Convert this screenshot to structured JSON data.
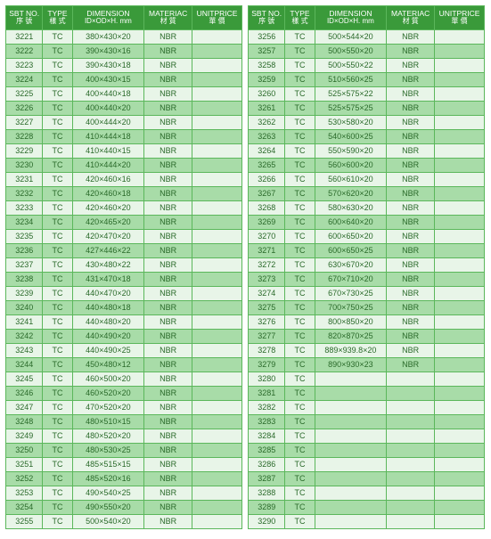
{
  "header": {
    "bg": "#3a9a3a",
    "fg": "#ffffff",
    "border": "#5bb75b",
    "row_odd_bg": "#e8f5e8",
    "row_even_bg": "#a8dca8",
    "cell_fg": "#2a6a2a",
    "columns": [
      {
        "line1": "SBT NO.",
        "line2": "序 號"
      },
      {
        "line1": "TYPE",
        "line2": "樣 式"
      },
      {
        "line1": "DIMENSION",
        "line2": "ID×OD×H. mm"
      },
      {
        "line1": "MATERIAC",
        "line2": "材 質"
      },
      {
        "line1": "UNITPRICE",
        "line2": "單 價"
      }
    ]
  },
  "left": [
    [
      "3221",
      "TC",
      "380×430×20",
      "NBR",
      ""
    ],
    [
      "3222",
      "TC",
      "390×430×16",
      "NBR",
      ""
    ],
    [
      "3223",
      "TC",
      "390×430×18",
      "NBR",
      ""
    ],
    [
      "3224",
      "TC",
      "400×430×15",
      "NBR",
      ""
    ],
    [
      "3225",
      "TC",
      "400×440×18",
      "NBR",
      ""
    ],
    [
      "3226",
      "TC",
      "400×440×20",
      "NBR",
      ""
    ],
    [
      "3227",
      "TC",
      "400×444×20",
      "NBR",
      ""
    ],
    [
      "3228",
      "TC",
      "410×444×18",
      "NBR",
      ""
    ],
    [
      "3229",
      "TC",
      "410×440×15",
      "NBR",
      ""
    ],
    [
      "3230",
      "TC",
      "410×444×20",
      "NBR",
      ""
    ],
    [
      "3231",
      "TC",
      "420×460×16",
      "NBR",
      ""
    ],
    [
      "3232",
      "TC",
      "420×460×18",
      "NBR",
      ""
    ],
    [
      "3233",
      "TC",
      "420×460×20",
      "NBR",
      ""
    ],
    [
      "3234",
      "TC",
      "420×465×20",
      "NBR",
      ""
    ],
    [
      "3235",
      "TC",
      "420×470×20",
      "NBR",
      ""
    ],
    [
      "3236",
      "TC",
      "427×446×22",
      "NBR",
      ""
    ],
    [
      "3237",
      "TC",
      "430×480×22",
      "NBR",
      ""
    ],
    [
      "3238",
      "TC",
      "431×470×18",
      "NBR",
      ""
    ],
    [
      "3239",
      "TC",
      "440×470×20",
      "NBR",
      ""
    ],
    [
      "3240",
      "TC",
      "440×480×18",
      "NBR",
      ""
    ],
    [
      "3241",
      "TC",
      "440×480×20",
      "NBR",
      ""
    ],
    [
      "3242",
      "TC",
      "440×490×20",
      "NBR",
      ""
    ],
    [
      "3243",
      "TC",
      "440×490×25",
      "NBR",
      ""
    ],
    [
      "3244",
      "TC",
      "450×480×12",
      "NBR",
      ""
    ],
    [
      "3245",
      "TC",
      "460×500×20",
      "NBR",
      ""
    ],
    [
      "3246",
      "TC",
      "460×520×20",
      "NBR",
      ""
    ],
    [
      "3247",
      "TC",
      "470×520×20",
      "NBR",
      ""
    ],
    [
      "3248",
      "TC",
      "480×510×15",
      "NBR",
      ""
    ],
    [
      "3249",
      "TC",
      "480×520×20",
      "NBR",
      ""
    ],
    [
      "3250",
      "TC",
      "480×530×25",
      "NBR",
      ""
    ],
    [
      "3251",
      "TC",
      "485×515×15",
      "NBR",
      ""
    ],
    [
      "3252",
      "TC",
      "485×520×16",
      "NBR",
      ""
    ],
    [
      "3253",
      "TC",
      "490×540×25",
      "NBR",
      ""
    ],
    [
      "3254",
      "TC",
      "490×550×20",
      "NBR",
      ""
    ],
    [
      "3255",
      "TC",
      "500×540×20",
      "NBR",
      ""
    ]
  ],
  "right": [
    [
      "3256",
      "TC",
      "500×544×20",
      "NBR",
      ""
    ],
    [
      "3257",
      "TC",
      "500×550×20",
      "NBR",
      ""
    ],
    [
      "3258",
      "TC",
      "500×550×22",
      "NBR",
      ""
    ],
    [
      "3259",
      "TC",
      "510×560×25",
      "NBR",
      ""
    ],
    [
      "3260",
      "TC",
      "525×575×22",
      "NBR",
      ""
    ],
    [
      "3261",
      "TC",
      "525×575×25",
      "NBR",
      ""
    ],
    [
      "3262",
      "TC",
      "530×580×20",
      "NBR",
      ""
    ],
    [
      "3263",
      "TC",
      "540×600×25",
      "NBR",
      ""
    ],
    [
      "3264",
      "TC",
      "550×590×20",
      "NBR",
      ""
    ],
    [
      "3265",
      "TC",
      "560×600×20",
      "NBR",
      ""
    ],
    [
      "3266",
      "TC",
      "560×610×20",
      "NBR",
      ""
    ],
    [
      "3267",
      "TC",
      "570×620×20",
      "NBR",
      ""
    ],
    [
      "3268",
      "TC",
      "580×630×20",
      "NBR",
      ""
    ],
    [
      "3269",
      "TC",
      "600×640×20",
      "NBR",
      ""
    ],
    [
      "3270",
      "TC",
      "600×650×20",
      "NBR",
      ""
    ],
    [
      "3271",
      "TC",
      "600×650×25",
      "NBR",
      ""
    ],
    [
      "3272",
      "TC",
      "630×670×20",
      "NBR",
      ""
    ],
    [
      "3273",
      "TC",
      "670×710×20",
      "NBR",
      ""
    ],
    [
      "3274",
      "TC",
      "670×730×25",
      "NBR",
      ""
    ],
    [
      "3275",
      "TC",
      "700×750×25",
      "NBR",
      ""
    ],
    [
      "3276",
      "TC",
      "800×850×20",
      "NBR",
      ""
    ],
    [
      "3277",
      "TC",
      "820×870×25",
      "NBR",
      ""
    ],
    [
      "3278",
      "TC",
      "889×939.8×20",
      "NBR",
      ""
    ],
    [
      "3279",
      "TC",
      "890×930×23",
      "NBR",
      ""
    ],
    [
      "3280",
      "TC",
      "",
      "",
      ""
    ],
    [
      "3281",
      "TC",
      "",
      "",
      ""
    ],
    [
      "3282",
      "TC",
      "",
      "",
      ""
    ],
    [
      "3283",
      "TC",
      "",
      "",
      ""
    ],
    [
      "3284",
      "TC",
      "",
      "",
      ""
    ],
    [
      "3285",
      "TC",
      "",
      "",
      ""
    ],
    [
      "3286",
      "TC",
      "",
      "",
      ""
    ],
    [
      "3287",
      "TC",
      "",
      "",
      ""
    ],
    [
      "3288",
      "TC",
      "",
      "",
      ""
    ],
    [
      "3289",
      "TC",
      "",
      "",
      ""
    ],
    [
      "3290",
      "TC",
      "",
      "",
      ""
    ]
  ]
}
